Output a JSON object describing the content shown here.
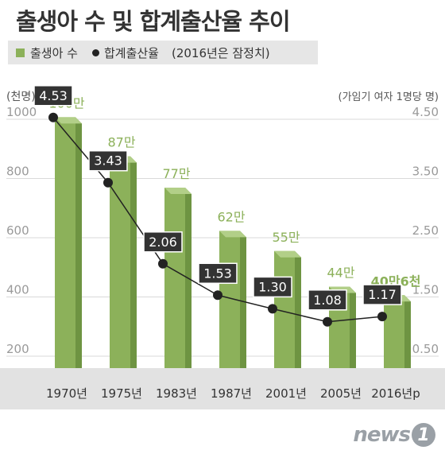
{
  "header": {
    "title": "출생아 수 및 합계출산율 추이"
  },
  "legend": {
    "births": "출생아 수",
    "rate": "합계출산율",
    "note": "(2016년은 잠정치)"
  },
  "chart_data": {
    "type": "bar",
    "categories": [
      "1970년",
      "1975년",
      "1983년",
      "1987년",
      "2001년",
      "2005년",
      "2016년p"
    ],
    "y_left_unit": "(천명)",
    "y_right_unit": "(가임기 여자 1명당 명)",
    "y_left_ticks": [
      "200",
      "400",
      "600",
      "800",
      "1000"
    ],
    "y_right_ticks": [
      "0.50",
      "1.50",
      "2.50",
      "3.50",
      "4.50"
    ],
    "ylim_left": [
      200,
      1000
    ],
    "ylim_right": [
      0.5,
      4.5
    ],
    "series": [
      {
        "name": "출생아 수",
        "type": "bar",
        "values": [
          1007,
          875,
          769,
          623,
          555,
          435,
          406
        ],
        "labels": [
          "100만",
          "87만",
          "77만",
          "62만",
          "55만",
          "44만",
          "40만6천"
        ]
      },
      {
        "name": "합계출산율",
        "type": "line",
        "values": [
          4.53,
          3.43,
          2.06,
          1.53,
          1.3,
          1.08,
          1.17
        ],
        "labels": [
          "4.53",
          "3.43",
          "2.06",
          "1.53",
          "1.30",
          "1.08",
          "1.17"
        ]
      }
    ]
  },
  "colors": {
    "bar_front": "#8cb15a",
    "bar_side": "#6e9442",
    "bar_top": "#b2cf88",
    "bar_label": "#8cb15a",
    "line": "#222222",
    "label_box": "#333333"
  },
  "brand": {
    "name": "news",
    "mark": "1"
  }
}
